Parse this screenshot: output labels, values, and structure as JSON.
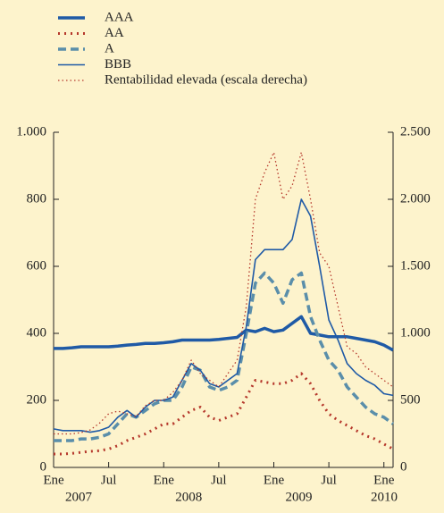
{
  "chart_data": {
    "type": "line",
    "x": [
      "2007-01",
      "2007-02",
      "2007-03",
      "2007-04",
      "2007-05",
      "2007-06",
      "2007-07",
      "2007-08",
      "2007-09",
      "2007-10",
      "2007-11",
      "2007-12",
      "2008-01",
      "2008-02",
      "2008-03",
      "2008-04",
      "2008-05",
      "2008-06",
      "2008-07",
      "2008-08",
      "2008-09",
      "2008-10",
      "2008-11",
      "2008-12",
      "2009-01",
      "2009-02",
      "2009-03",
      "2009-04",
      "2009-05",
      "2009-06",
      "2009-07",
      "2009-08",
      "2009-09",
      "2009-10",
      "2009-11",
      "2009-12",
      "2010-01",
      "2010-02"
    ],
    "xlim": [
      "2007-01",
      "2010-02"
    ],
    "xticks": [
      {
        "value": "2007-01",
        "label": "Ene"
      },
      {
        "value": "2007-07",
        "label": "Jul"
      },
      {
        "value": "2008-01",
        "label": "Ene"
      },
      {
        "value": "2008-07",
        "label": "Jul"
      },
      {
        "value": "2009-01",
        "label": "Ene"
      },
      {
        "value": "2009-07",
        "label": "Jul"
      },
      {
        "value": "2010-01",
        "label": "Ene"
      }
    ],
    "x_years": [
      "2007",
      "2008",
      "2009",
      "2010"
    ],
    "ylim": [
      0,
      1000
    ],
    "yticks": [
      0,
      200,
      400,
      600,
      800,
      {
        "value": 1000,
        "label": "1.000"
      }
    ],
    "y2lim": [
      0,
      2500
    ],
    "y2ticks": [
      0,
      500,
      {
        "value": 1000,
        "label": "1.000"
      },
      {
        "value": 1500,
        "label": "1.500"
      },
      {
        "value": 2000,
        "label": "2.000"
      },
      {
        "value": 2500,
        "label": "2.500"
      }
    ],
    "legend": "top-left",
    "series": [
      {
        "name": "AAA",
        "color": "#1f5aa6",
        "style": "solid",
        "width": 3.5,
        "values": [
          355,
          355,
          357,
          360,
          360,
          360,
          360,
          362,
          365,
          367,
          370,
          370,
          372,
          375,
          380,
          380,
          380,
          380,
          382,
          385,
          388,
          410,
          405,
          415,
          405,
          410,
          430,
          450,
          400,
          395,
          390,
          390,
          390,
          385,
          380,
          375,
          365,
          350
        ]
      },
      {
        "name": "AA",
        "color": "#b5372b",
        "style": "dotted",
        "width": 3,
        "values": [
          40,
          40,
          42,
          45,
          48,
          50,
          55,
          65,
          80,
          90,
          100,
          115,
          130,
          130,
          150,
          170,
          180,
          150,
          140,
          150,
          160,
          210,
          260,
          255,
          250,
          250,
          260,
          280,
          250,
          200,
          160,
          140,
          125,
          110,
          95,
          85,
          70,
          55
        ]
      },
      {
        "name": "A",
        "color": "#5a8eaa",
        "style": "dashed",
        "width": 3.5,
        "values": [
          80,
          80,
          80,
          85,
          85,
          90,
          100,
          130,
          160,
          150,
          170,
          190,
          200,
          200,
          240,
          300,
          290,
          240,
          230,
          240,
          260,
          400,
          550,
          580,
          550,
          490,
          560,
          580,
          450,
          380,
          320,
          290,
          240,
          210,
          180,
          160,
          150,
          130
        ]
      },
      {
        "name": "BBB",
        "color": "#1f5aa6",
        "style": "solid",
        "width": 1.6,
        "values": [
          115,
          110,
          110,
          110,
          105,
          110,
          120,
          150,
          170,
          150,
          180,
          200,
          200,
          210,
          260,
          310,
          290,
          250,
          240,
          260,
          280,
          420,
          620,
          650,
          650,
          650,
          680,
          800,
          750,
          600,
          440,
          380,
          310,
          280,
          260,
          245,
          220,
          215
        ]
      },
      {
        "name": "Rentabilidad elevada (escala derecha)",
        "color": "#b5372b",
        "style": "dotted",
        "width": 1.3,
        "axis": "y2",
        "values": [
          250,
          250,
          250,
          260,
          280,
          330,
          400,
          420,
          400,
          380,
          460,
          500,
          500,
          560,
          650,
          800,
          700,
          650,
          600,
          700,
          800,
          1200,
          2000,
          2200,
          2350,
          2000,
          2100,
          2350,
          2000,
          1600,
          1500,
          1200,
          900,
          850,
          750,
          700,
          650,
          600
        ]
      }
    ]
  }
}
